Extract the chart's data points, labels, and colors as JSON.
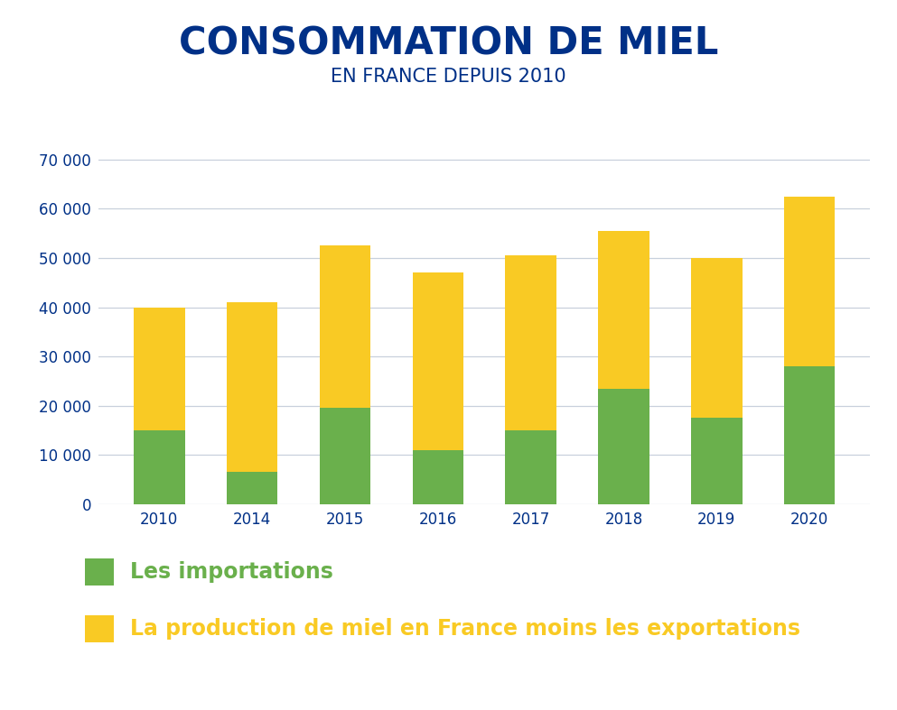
{
  "title": "CONSOMMATION DE MIEL",
  "subtitle": "EN FRANCE DEPUIS 2010",
  "categories": [
    "2010",
    "2014",
    "2015",
    "2016",
    "2017",
    "2018",
    "2019",
    "2020"
  ],
  "importations": [
    15000,
    6500,
    19500,
    11000,
    15000,
    23500,
    17500,
    28000
  ],
  "production": [
    25000,
    34500,
    33000,
    36000,
    35500,
    32000,
    32500,
    34500
  ],
  "color_green": "#6ab04c",
  "color_yellow": "#f9ca24",
  "title_color": "#003087",
  "subtitle_color": "#003087",
  "legend_green_text": "Les importations",
  "legend_yellow_text": "La production de miel en France moins les exportations",
  "legend_green_color": "#6ab04c",
  "legend_yellow_color": "#f9ca24",
  "ylim": [
    0,
    75000
  ],
  "yticks": [
    0,
    10000,
    20000,
    30000,
    40000,
    50000,
    60000,
    70000
  ],
  "ytick_labels": [
    "0",
    "10 000",
    "20 000",
    "30 000",
    "40 000",
    "50 000",
    "60 000",
    "70 000"
  ],
  "background_color": "#ffffff",
  "grid_color": "#c8d0dc",
  "axis_color": "#003087",
  "bar_width": 0.55
}
